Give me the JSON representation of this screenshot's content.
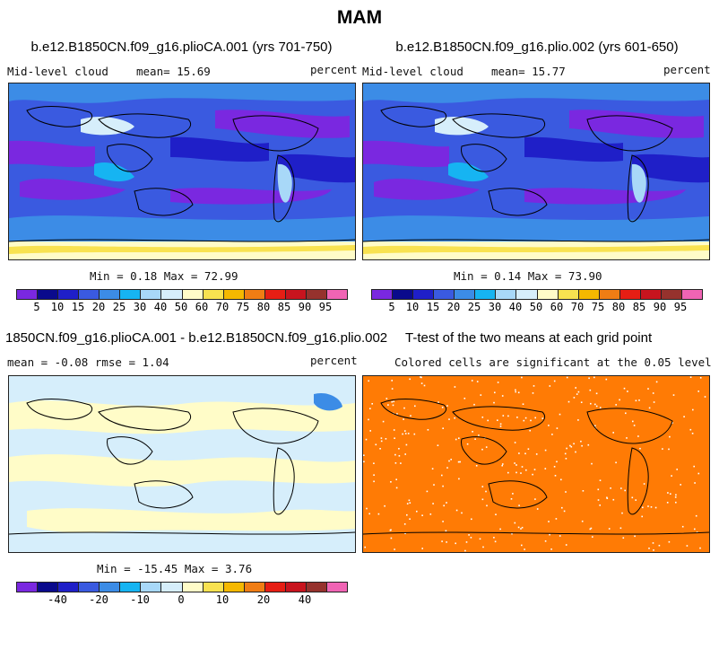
{
  "main_title": "MAM",
  "panels": [
    {
      "id": "p1",
      "title": "b.e12.B1850CN.f09_g16.plioCA.001 (yrs 701-750)",
      "variable": "Mid-level cloud",
      "mean_text": "mean=  15.69",
      "units": "percent",
      "minmax_text": "Min =   0.18 Max =  72.99"
    },
    {
      "id": "p2",
      "title": "b.e12.B1850CN.f09_g16.plio.002 (yrs 601-650)",
      "variable": "Mid-level cloud",
      "mean_text": "mean=  15.77",
      "units": "percent",
      "minmax_text": "Min =   0.14 Max =  73.90"
    },
    {
      "id": "p3",
      "title": "1850CN.f09_g16.plioCA.001 - b.e12.B1850CN.f09_g16.plio.002",
      "stats_text": "mean =  -0.08     rmse =    1.04",
      "units": "percent",
      "minmax_text": "Min = -15.45 Max =   3.76"
    },
    {
      "id": "p4",
      "title": "T-test of the two means at each grid point",
      "subtitle": "Colored cells are significant at the 0.05 level"
    }
  ],
  "colorbars": {
    "abs": {
      "colors": [
        "#7a28e0",
        "#0a0a8c",
        "#1f1fc8",
        "#3a5ae0",
        "#3c8ce6",
        "#16b4f2",
        "#a8d8f8",
        "#d6eefb",
        "#fffcc8",
        "#f8e250",
        "#f5b800",
        "#f07d14",
        "#e61e14",
        "#c8141e",
        "#96322d",
        "#f064b4"
      ],
      "labels": [
        "5",
        "10",
        "15",
        "20",
        "25",
        "30",
        "40",
        "50",
        "60",
        "70",
        "75",
        "80",
        "85",
        "90",
        "95"
      ]
    },
    "diff": {
      "colors": [
        "#7a28e0",
        "#0a0a8c",
        "#1f1fc8",
        "#3a5ae0",
        "#3c8ce6",
        "#16b4f2",
        "#a8d8f8",
        "#d6eefb",
        "#fffcc8",
        "#f8e250",
        "#f5b800",
        "#f07d14",
        "#e61e14",
        "#c8141e",
        "#96322d",
        "#f064b4"
      ],
      "labels": [
        "-40",
        "-20",
        "-10",
        "0",
        "10",
        "20",
        "40"
      ],
      "label_positions": [
        1,
        3,
        5,
        7,
        9,
        11,
        13
      ]
    }
  },
  "colors": {
    "ttest_fill": "#ff7b05",
    "diff_background": "#d6eefb",
    "diff_positive": "#fffcc8"
  }
}
